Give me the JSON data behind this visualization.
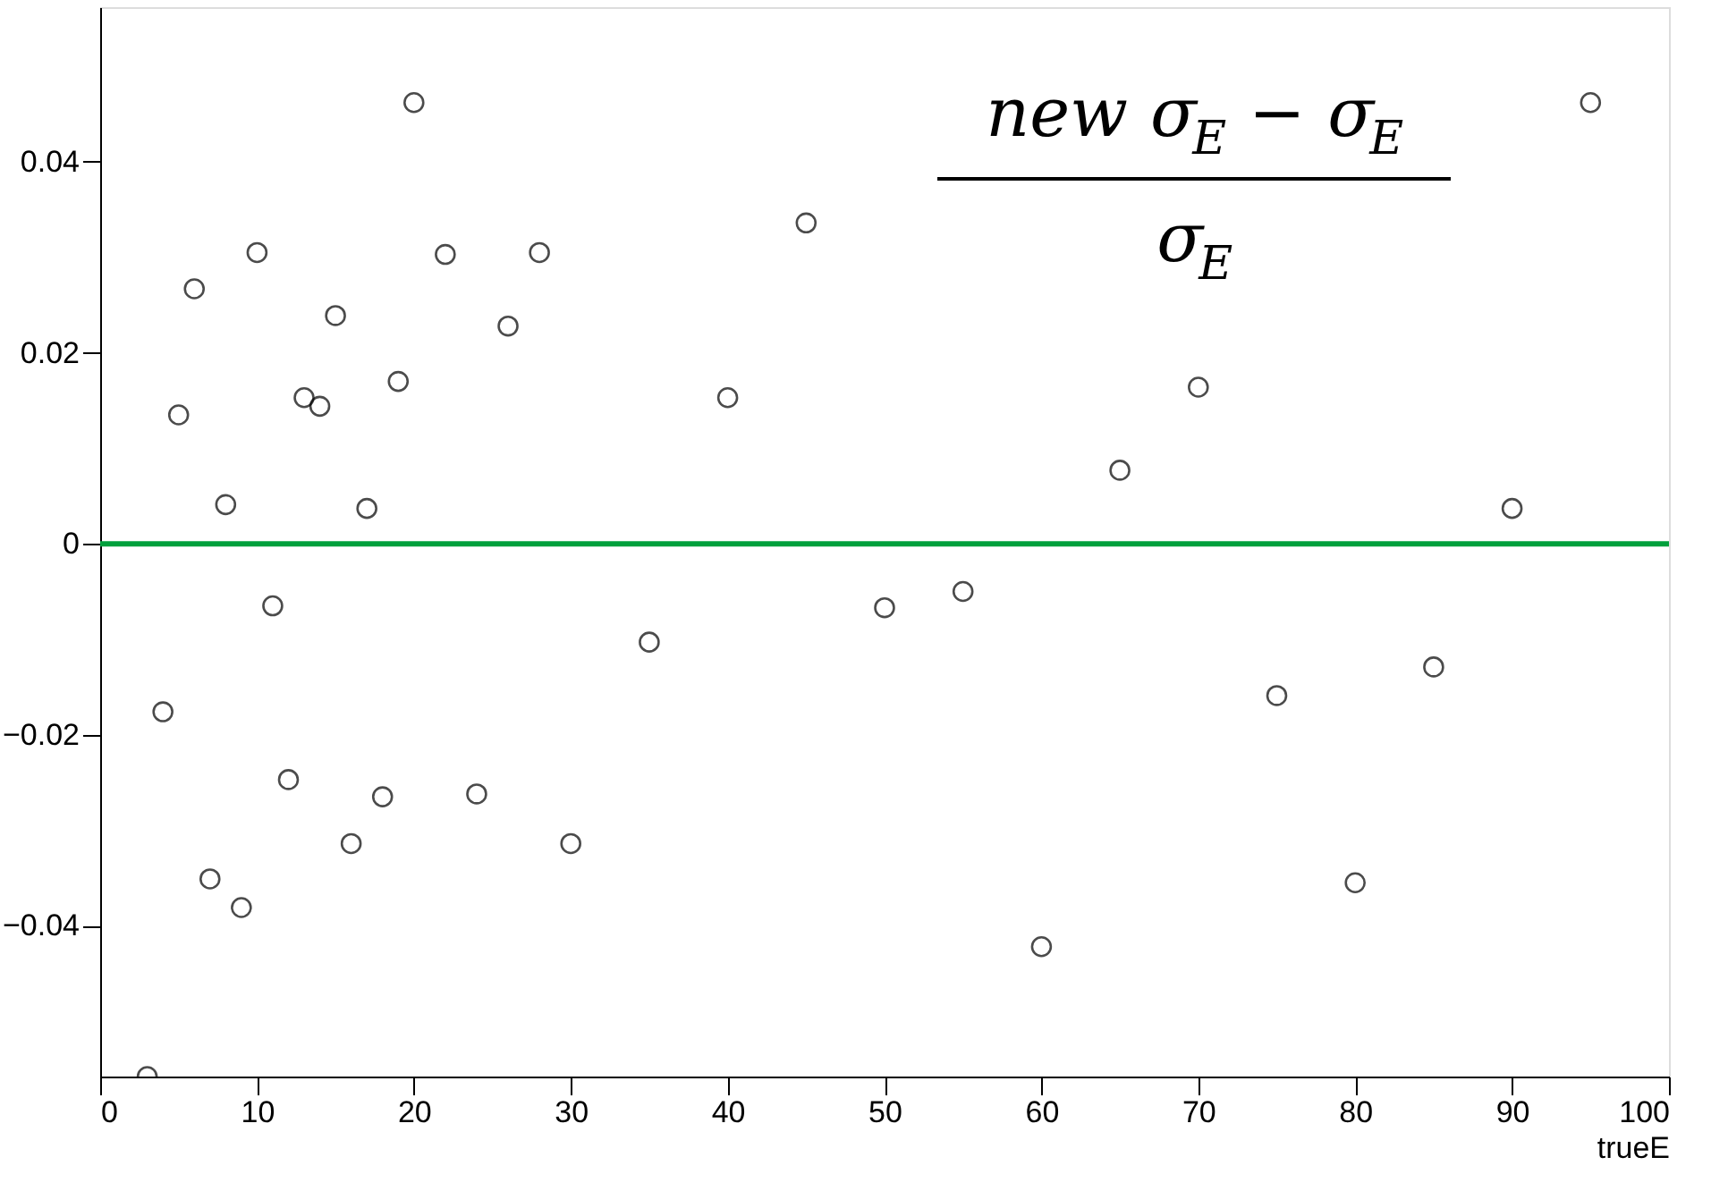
{
  "chart_data": {
    "type": "scatter",
    "xlabel": "trueE",
    "x": [
      3,
      4,
      5,
      6,
      7,
      8,
      9,
      10,
      11,
      12,
      13,
      14,
      15,
      16,
      17,
      18,
      19,
      20,
      22,
      24,
      26,
      28,
      30,
      35,
      40,
      45,
      50,
      55,
      60,
      65,
      70,
      75,
      80,
      85,
      90,
      95
    ],
    "series": [
      {
        "color": "#000000",
        "values": [
          -0.0558,
          -0.0176,
          0.0135,
          0.0267,
          -0.0351,
          0.0041,
          -0.0381,
          0.0305,
          -0.0065,
          -0.0247,
          0.0153,
          0.0144,
          0.0239,
          -0.0314,
          0.0037,
          -0.0265,
          0.017,
          0.0462,
          0.0303,
          -0.0262,
          0.0228,
          0.0305,
          -0.0314,
          -0.0103,
          0.0153,
          0.0336,
          -0.0067,
          -0.005,
          -0.0422,
          0.0077,
          0.0164,
          -0.0159,
          -0.0355,
          -0.0129,
          0.0037,
          0.0462
        ]
      }
    ],
    "marker": "circle",
    "xlim": [
      0,
      100
    ],
    "ylim": [
      -0.0558,
      0.0562
    ],
    "xticks": [
      0,
      10,
      20,
      30,
      40,
      50,
      60,
      70,
      80,
      90,
      100
    ],
    "yticks": [
      {
        "value": -0.04,
        "label": "−0.04"
      },
      {
        "value": -0.02,
        "label": "−0.02"
      },
      0,
      0.02,
      0.04
    ],
    "ref_lines": [
      {
        "axis": "y",
        "value": 0,
        "color": "#00a03c",
        "line_style": "solid"
      }
    ],
    "annotations": [
      "new σ$_{E}$ − σ$_{E}$",
      "σ$_{E}$"
    ],
    "grid": false
  }
}
